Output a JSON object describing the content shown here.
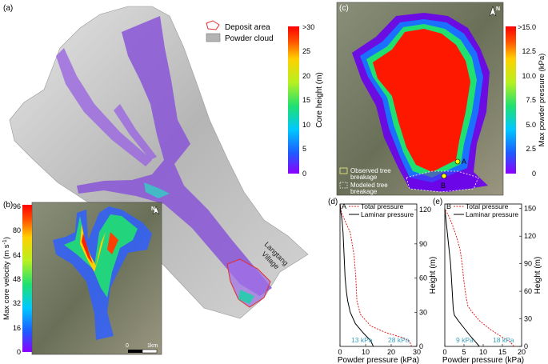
{
  "panels": {
    "a": {
      "label": "(a)",
      "legend": {
        "deposit": "Deposit area",
        "powder": "Powder cloud"
      },
      "village": {
        "line1": "Langtang",
        "line2": "Village"
      },
      "colorbar": {
        "label": "Core height (m)",
        "ticks": [
          ">30",
          "25",
          "20",
          "15",
          "10",
          "5",
          "0"
        ],
        "colors": [
          "#8b00ff",
          "#1e5bff",
          "#00c8ff",
          "#20e070",
          "#b8f020",
          "#ffd000",
          "#ff5000",
          "#ff0000"
        ]
      }
    },
    "b": {
      "label": "(b)",
      "north": "N",
      "scale": {
        "left": "0",
        "right": "1km"
      },
      "colorbar": {
        "label": "Max core velocity (m s-1)",
        "ticks": [
          "96",
          "80",
          "64",
          "48",
          "32",
          "16",
          "0"
        ]
      }
    },
    "c": {
      "label": "(c)",
      "north": "N",
      "points": {
        "a": "A",
        "b": "B"
      },
      "legend": {
        "observed_line1": "Observed tree",
        "observed_line2": "breakage",
        "modeled_line1": "Modeled tree",
        "modeled_line2": "breakage"
      },
      "colorbar": {
        "label": "Max powder pressure (kPa)",
        "ticks": [
          ">15.0",
          "12.5",
          "10.0",
          "7.5",
          "5.0",
          "2.5",
          "0"
        ]
      }
    }
  },
  "chart_data": [
    {
      "panel": "(d)",
      "type": "line",
      "point_label": "A",
      "xlabel": "Powder pressure (kPa)",
      "ylabel": "Height (m)",
      "xlim": [
        0,
        30
      ],
      "ylim": [
        0,
        125
      ],
      "xticks": [
        "0",
        "10",
        "20",
        "30"
      ],
      "yticks": [
        "0",
        "30",
        "60",
        "90",
        "120"
      ],
      "series": [
        {
          "name": "Total pressure",
          "style": "dotted",
          "color": "#e02020",
          "x": [
            28,
            27,
            24,
            18,
            12,
            8,
            6.6,
            6.2,
            5.5,
            4,
            2,
            0.5,
            0
          ],
          "y": [
            0,
            5,
            8,
            12,
            18,
            28,
            40,
            60,
            80,
            100,
            110,
            118,
            125
          ]
        },
        {
          "name": "Laminar pressure",
          "style": "solid",
          "color": "#000000",
          "x": [
            13,
            12,
            9,
            6,
            4,
            3,
            2.5,
            2,
            1.6,
            1.2,
            0.8,
            0.3,
            0
          ],
          "y": [
            0,
            5,
            12,
            20,
            30,
            40,
            48,
            60,
            80,
            100,
            110,
            118,
            125
          ]
        }
      ],
      "annotations": [
        "13 kPa",
        "28 kPa"
      ]
    },
    {
      "panel": "(e)",
      "type": "line",
      "point_label": "B",
      "xlabel": "Powder pressure (kPa)",
      "ylabel": "Height (m)",
      "xlim": [
        0,
        20
      ],
      "ylim": [
        0,
        155
      ],
      "xticks": [
        "0",
        "5",
        "10",
        "15",
        "20"
      ],
      "yticks": [
        "0",
        "30",
        "60",
        "90",
        "120",
        "150"
      ],
      "series": [
        {
          "name": "Total pressure",
          "style": "dotted",
          "color": "#e02020",
          "x": [
            18,
            17,
            15,
            12,
            9,
            7,
            6,
            5.5,
            5,
            4.5,
            4,
            3,
            2,
            1,
            0
          ],
          "y": [
            0,
            5,
            10,
            18,
            28,
            38,
            44,
            55,
            70,
            90,
            105,
            120,
            132,
            142,
            150
          ]
        },
        {
          "name": "Laminar pressure",
          "style": "solid",
          "color": "#000000",
          "x": [
            9,
            8,
            6.5,
            5,
            3.5,
            2.5,
            2.2,
            2,
            1.8,
            1.5,
            1,
            0.5,
            0
          ],
          "y": [
            0,
            5,
            12,
            20,
            28,
            34,
            40,
            55,
            70,
            90,
            110,
            130,
            150
          ]
        }
      ],
      "annotations": [
        "9 kPa",
        "18 kPa"
      ]
    }
  ]
}
